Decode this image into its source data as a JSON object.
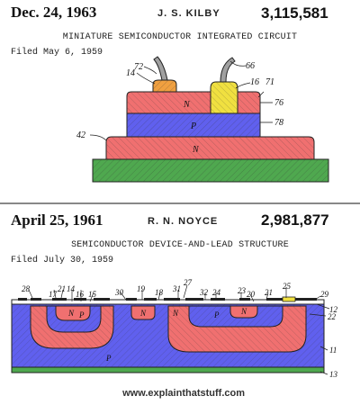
{
  "kilby": {
    "date": "Dec. 24, 1963",
    "inventor": "J. S. KILBY",
    "number": "3,115,581",
    "title": "MINIATURE SEMICONDUCTOR INTEGRATED CIRCUIT",
    "filed": "Filed May 6, 1959",
    "labels": {
      "l72": "72",
      "l66": "66",
      "l14": "14",
      "l16": "16",
      "l71": "71",
      "l76": "76",
      "l78": "78",
      "l42": "42",
      "N1": "N",
      "P1": "P",
      "N2": "N"
    }
  },
  "noyce": {
    "date": "April 25, 1961",
    "inventor": "R. N. NOYCE",
    "number": "2,981,877",
    "title": "SEMICONDUCTOR DEVICE-AND-LEAD STRUCTURE",
    "filed": "Filed July 30, 1959",
    "labels": {
      "l28": "28",
      "l17": "17",
      "l21": "21",
      "l14": "14",
      "l16": "16",
      "l15": "15",
      "l30": "30",
      "l19": "19",
      "l18": "18",
      "l31": "31",
      "l27": "27",
      "l32": "32",
      "l24": "24",
      "l23": "23",
      "l20": "20",
      "l21b": "21",
      "l25": "25",
      "l29": "29",
      "l12": "12",
      "l22": "22",
      "l11": "11",
      "l13": "13",
      "N1": "N",
      "P1": "P",
      "N2": "N",
      "N3": "N",
      "P2": "P",
      "N4": "N",
      "P3": "P"
    }
  },
  "credit": "www.explainthatstuff.com",
  "colors": {
    "green": "#4fa84f",
    "red": "#f07070",
    "blue": "#6060ee",
    "orange": "#f0a040",
    "yellow": "#f0e040",
    "gray": "#a0a0a0"
  }
}
